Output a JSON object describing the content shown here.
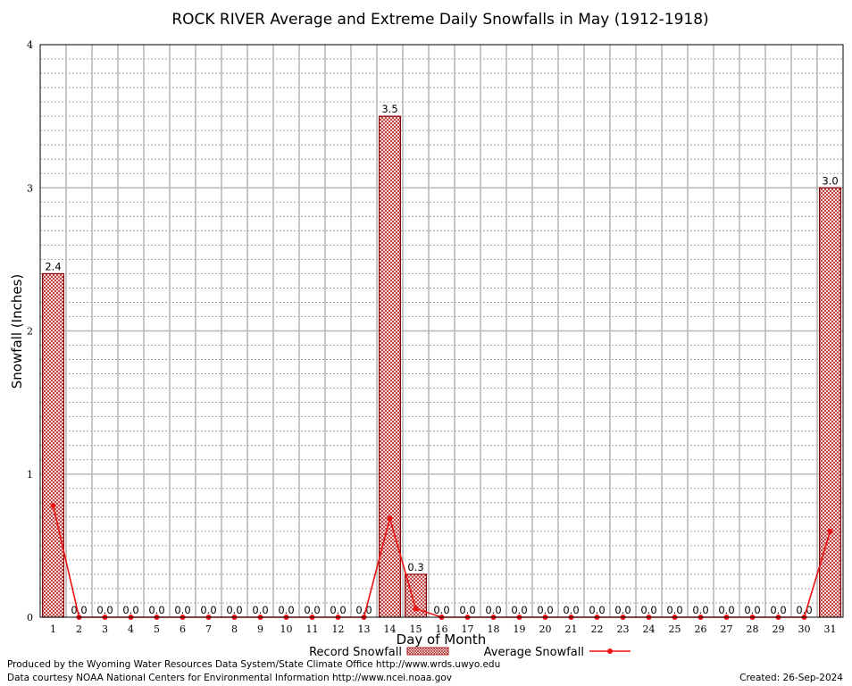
{
  "chart_data": {
    "type": "bar",
    "title": "ROCK RIVER Average and Extreme Daily Snowfalls in May (1912-1918)",
    "xlabel": "Day of Month",
    "ylabel": "Snowfall (Inches)",
    "ylim": [
      0,
      4
    ],
    "yticks": [
      "0",
      "1",
      "2",
      "3",
      "4"
    ],
    "categories": [
      "1",
      "2",
      "3",
      "4",
      "5",
      "6",
      "7",
      "8",
      "9",
      "10",
      "11",
      "12",
      "13",
      "14",
      "15",
      "16",
      "17",
      "18",
      "19",
      "20",
      "21",
      "22",
      "23",
      "24",
      "25",
      "26",
      "27",
      "28",
      "29",
      "30",
      "31"
    ],
    "grid": true,
    "legend_position": "bottom",
    "series": [
      {
        "name": "Record Snowfall",
        "kind": "bar",
        "color": "#b22222",
        "values": [
          2.4,
          0.0,
          0.0,
          0.0,
          0.0,
          0.0,
          0.0,
          0.0,
          0.0,
          0.0,
          0.0,
          0.0,
          0.0,
          3.5,
          0.3,
          0.0,
          0.0,
          0.0,
          0.0,
          0.0,
          0.0,
          0.0,
          0.0,
          0.0,
          0.0,
          0.0,
          0.0,
          0.0,
          0.0,
          0.0,
          3.0
        ],
        "labels": [
          "2.4",
          "0.0",
          "0.0",
          "0.0",
          "0.0",
          "0.0",
          "0.0",
          "0.0",
          "0.0",
          "0.0",
          "0.0",
          "0.0",
          "0.0",
          "3.5",
          "0.3",
          "0.0",
          "0.0",
          "0.0",
          "0.0",
          "0.0",
          "0.0",
          "0.0",
          "0.0",
          "0.0",
          "0.0",
          "0.0",
          "0.0",
          "0.0",
          "0.0",
          "0.0",
          "3.0"
        ]
      },
      {
        "name": "Average Snowfall",
        "kind": "line",
        "color": "#ee1111",
        "values": [
          0.78,
          0.0,
          0.0,
          0.0,
          0.0,
          0.0,
          0.0,
          0.0,
          0.0,
          0.0,
          0.0,
          0.0,
          0.0,
          0.69,
          0.06,
          0.0,
          0.0,
          0.0,
          0.0,
          0.0,
          0.0,
          0.0,
          0.0,
          0.0,
          0.0,
          0.0,
          0.0,
          0.0,
          0.0,
          0.0,
          0.6
        ]
      }
    ]
  },
  "footer": {
    "produced_by": "Produced by the Wyoming Water Resources Data System/State Climate Office http://www.wrds.uwyo.edu",
    "data_courtesy": "Data courtesy NOAA National Centers for Environmental Information http://www.ncei.noaa.gov",
    "created": "Created:  26-Sep-2024"
  }
}
